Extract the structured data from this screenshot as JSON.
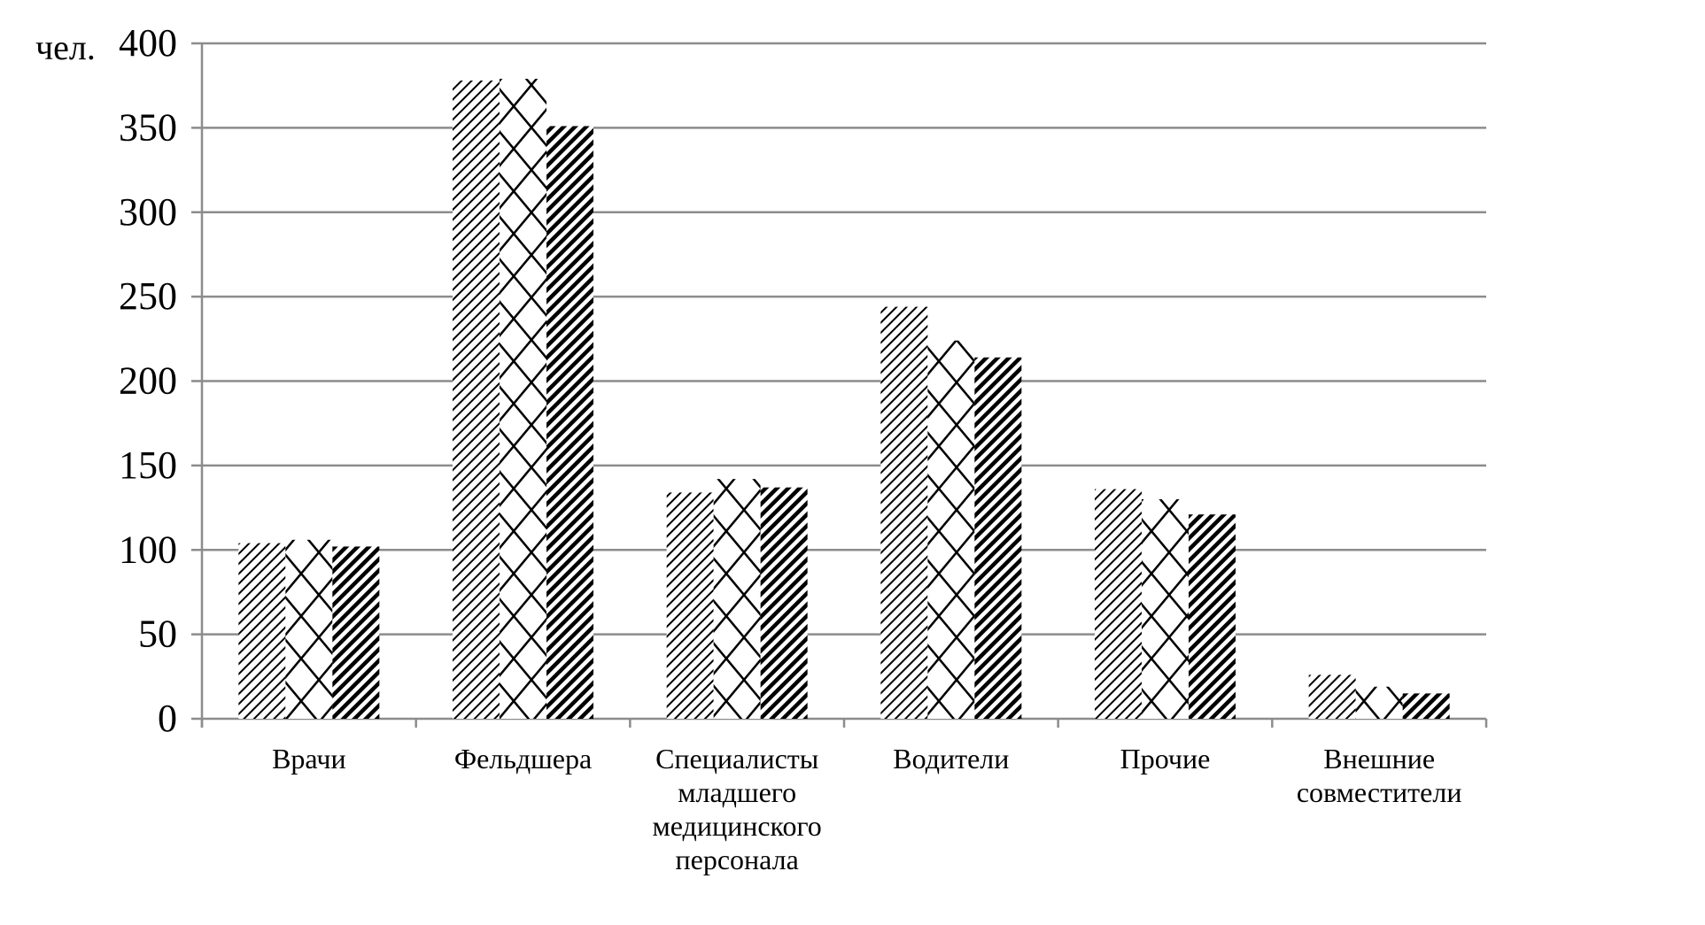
{
  "chart_data": {
    "type": "bar",
    "title": "",
    "ylabel": "чел.",
    "xlabel": "",
    "ylim": [
      0,
      400
    ],
    "yticks": [
      0,
      50,
      100,
      150,
      200,
      250,
      300,
      350,
      400
    ],
    "grid": true,
    "legend": "none",
    "categories": [
      [
        "Врачи"
      ],
      [
        "Фельдшера"
      ],
      [
        "Специалисты",
        "младшего",
        "медицинского",
        "персонала"
      ],
      [
        "Водители"
      ],
      [
        "Прочие"
      ],
      [
        "Внешние",
        "совместители"
      ]
    ],
    "series": [
      {
        "pattern": "fine-diagonal",
        "values": [
          104,
          378,
          134,
          244,
          136,
          26
        ]
      },
      {
        "pattern": "diamond-crosshatch",
        "values": [
          106,
          379,
          142,
          224,
          130,
          19
        ]
      },
      {
        "pattern": "bold-diagonal",
        "values": [
          102,
          351,
          137,
          214,
          121,
          15
        ]
      }
    ],
    "colors": {
      "grid": "#8c8c8c",
      "ink": "#000000"
    }
  }
}
